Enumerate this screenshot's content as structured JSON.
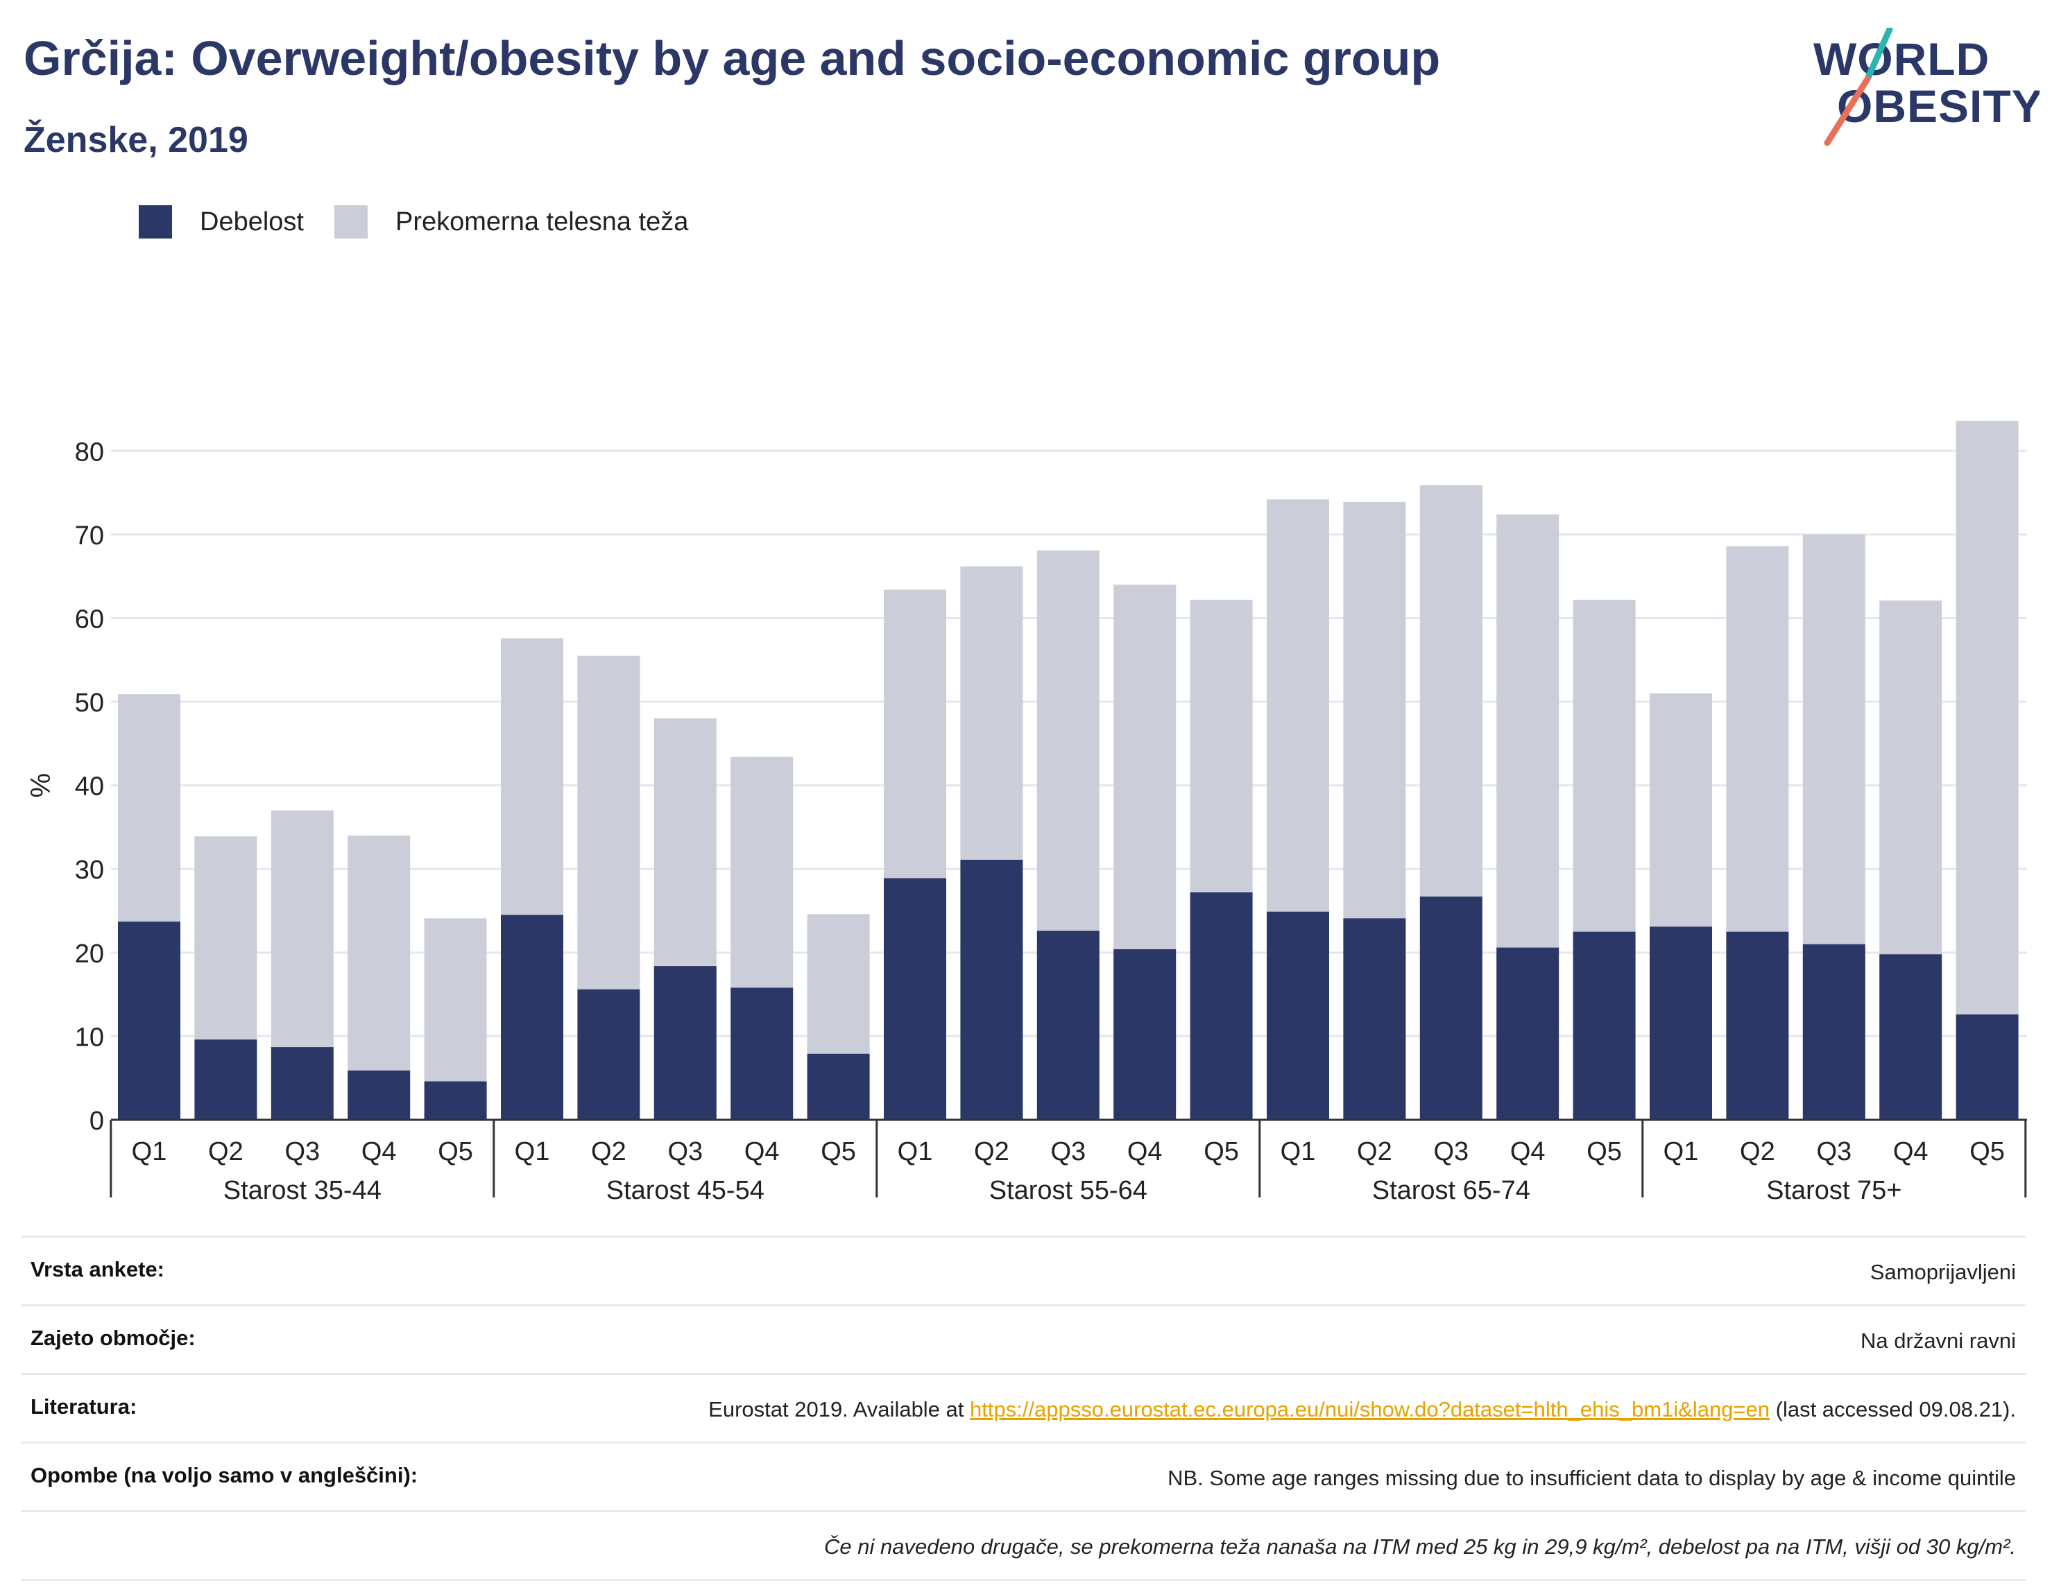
{
  "header": {
    "title": "Grčija: Overweight/obesity by age and socio-economic group",
    "subtitle": "Ženske, 2019"
  },
  "logo": {
    "line1": "WORLD",
    "line2": "OBESITY",
    "accent_teal": "#2ab5b0",
    "accent_coral": "#e8705a"
  },
  "legend": {
    "obesity_label": "Debelost",
    "overweight_label": "Prekomerna telesna teža"
  },
  "colors": {
    "obesity": "#2b3767",
    "overweight": "#cbcdd9",
    "title": "#2b3767",
    "link": "#e8a200"
  },
  "chart_data": {
    "type": "bar",
    "stacked": true,
    "ylabel": "%",
    "ylim": [
      0,
      85
    ],
    "yticks": [
      0,
      10,
      20,
      30,
      40,
      50,
      60,
      70,
      80
    ],
    "grid": true,
    "legend_position": "top-left",
    "groups": [
      {
        "label": "Starost 35-44",
        "categories": [
          "Q1",
          "Q2",
          "Q3",
          "Q4",
          "Q5"
        ],
        "obesity": [
          23.7,
          9.6,
          8.7,
          5.9,
          4.6
        ],
        "total": [
          50.9,
          33.9,
          37.0,
          34.0,
          24.1
        ]
      },
      {
        "label": "Starost 45-54",
        "categories": [
          "Q1",
          "Q2",
          "Q3",
          "Q4",
          "Q5"
        ],
        "obesity": [
          24.5,
          15.6,
          18.4,
          15.8,
          7.9
        ],
        "total": [
          57.6,
          55.5,
          48.0,
          43.4,
          24.6
        ]
      },
      {
        "label": "Starost 55-64",
        "categories": [
          "Q1",
          "Q2",
          "Q3",
          "Q4",
          "Q5"
        ],
        "obesity": [
          28.9,
          31.1,
          22.6,
          20.4,
          27.2
        ],
        "total": [
          63.4,
          66.2,
          68.1,
          64.0,
          62.2
        ]
      },
      {
        "label": "Starost 65-74",
        "categories": [
          "Q1",
          "Q2",
          "Q3",
          "Q4",
          "Q5"
        ],
        "obesity": [
          24.9,
          24.1,
          26.7,
          20.6,
          22.5
        ],
        "total": [
          74.2,
          73.9,
          75.9,
          72.4,
          62.2
        ]
      },
      {
        "label": "Starost 75+",
        "categories": [
          "Q1",
          "Q2",
          "Q3",
          "Q4",
          "Q5"
        ],
        "obesity": [
          23.1,
          22.5,
          21.0,
          19.8,
          12.6
        ],
        "total": [
          51.0,
          68.6,
          70.0,
          62.1,
          83.6
        ]
      }
    ],
    "series": [
      {
        "name": "Debelost"
      },
      {
        "name": "Prekomerna telesna teža"
      }
    ]
  },
  "info": {
    "survey_label": "Vrsta ankete:",
    "survey_value": "Samoprijavljeni",
    "coverage_label": "Zajeto območje:",
    "coverage_value": "Na državni ravni",
    "reference_label": "Literatura:",
    "reference_prefix": "Eurostat 2019. Available at ",
    "reference_link": "https://appsso.eurostat.ec.europa.eu/nui/show.do?dataset=hlth_ehis_bm1i&lang=en",
    "reference_suffix": " (last accessed 09.08.21).",
    "notes_label": "Opombe (na voljo samo v angleščini):",
    "notes_value": "NB. Some age ranges missing due to insufficient data to display by age & income quintile",
    "footnote": "Če ni navedeno drugače, se prekomerna teža nanaša na ITM med 25 kg in 29,9 kg/m², debelost pa na ITM, višji od 30 kg/m²."
  }
}
